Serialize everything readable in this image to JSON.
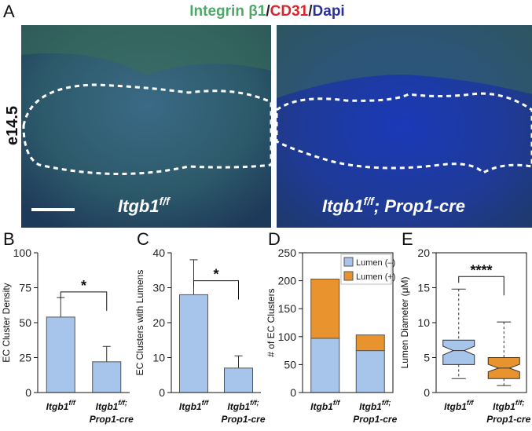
{
  "panel_a": {
    "label": "A",
    "title": [
      {
        "text": "Integrin β1",
        "color": "#4fa86a"
      },
      {
        "text": "/",
        "color": "#222222"
      },
      {
        "text": "CD31",
        "color": "#d8262c"
      },
      {
        "text": "/",
        "color": "#222222"
      },
      {
        "text": "Dapi",
        "color": "#2b2f9a"
      }
    ],
    "stage": "e14.5",
    "left_label": {
      "base": "Itgb1",
      "sup": "f/f"
    },
    "right_label": {
      "base": "Itgb1",
      "sup": "f/f",
      "rest": "; Prop1-cre"
    }
  },
  "chart_data": [
    {
      "type": "bar",
      "panel": "B",
      "ylabel": "EC Cluster Density",
      "categories": [
        {
          "base": "Itgb1",
          "sup": "f/f"
        },
        {
          "base": "Itgb1",
          "sup": "f/f;",
          "line2": "Prop1-cre"
        }
      ],
      "values": [
        54,
        22
      ],
      "errors": [
        14,
        11
      ],
      "color": "#a7c4ea",
      "ylim": [
        0,
        100
      ],
      "yticks": [
        0,
        25,
        50,
        75,
        100
      ],
      "annotation": "*"
    },
    {
      "type": "bar",
      "panel": "C",
      "ylabel": "EC Clusters with Lumens",
      "categories": [
        {
          "base": "Itgb1",
          "sup": "f/f"
        },
        {
          "base": "Itgb1",
          "sup": "f/f;",
          "line2": "Prop1-cre"
        }
      ],
      "values": [
        28,
        7
      ],
      "errors": [
        10,
        3.5
      ],
      "color": "#a7c4ea",
      "ylim": [
        0,
        40
      ],
      "yticks": [
        0,
        10,
        20,
        30,
        40
      ],
      "annotation": "*"
    },
    {
      "type": "stacked",
      "panel": "D",
      "ylabel": "# of EC Clusters",
      "categories": [
        {
          "base": "Itgb1",
          "sup": "f/f"
        },
        {
          "base": "Itgb1",
          "sup": "f/f;",
          "line2": "Prop1-cre"
        }
      ],
      "series": [
        {
          "name": "Lumen (–)",
          "color": "#a7c4ea",
          "values": [
            97,
            75
          ]
        },
        {
          "name": "Lumen (+)",
          "color": "#e9932e",
          "values": [
            106,
            28
          ]
        }
      ],
      "ylim": [
        0,
        250
      ],
      "yticks": [
        0,
        50,
        100,
        150,
        200,
        250
      ],
      "legend": "top-right"
    },
    {
      "type": "box",
      "panel": "E",
      "ylabel": "Lumen Diameter (μM)",
      "categories": [
        {
          "base": "Itgb1",
          "sup": "f/f"
        },
        {
          "base": "Itgb1",
          "sup": "f/f;",
          "line2": "Prop1-cre"
        }
      ],
      "boxes": [
        {
          "whislo": 2,
          "q1": 4,
          "med": 6,
          "q3": 7.5,
          "whishi": 14.8,
          "color": "#a7c4ea"
        },
        {
          "whislo": 1,
          "q1": 2,
          "med": 3.5,
          "q3": 5,
          "whishi": 10.1,
          "color": "#e9932e"
        }
      ],
      "ylim": [
        0,
        20
      ],
      "yticks": [
        0,
        5,
        10,
        15,
        20
      ],
      "annotation": "****"
    }
  ]
}
